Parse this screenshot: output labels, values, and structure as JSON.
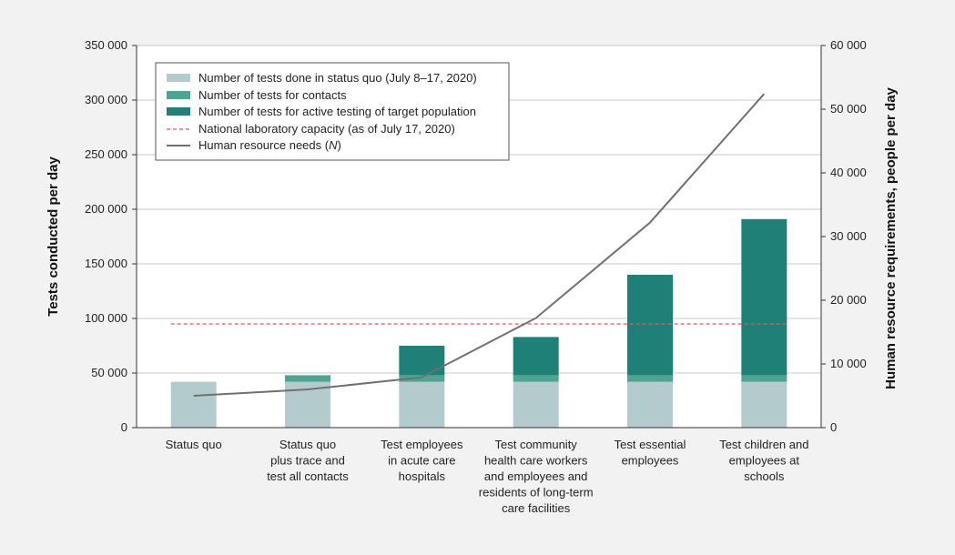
{
  "chart_data": {
    "type": "bar",
    "stacked": true,
    "ylabel": "Tests conducted per day",
    "y2label": "Human resource requirements, people per day",
    "ylim": [
      0,
      350000
    ],
    "y2lim": [
      0,
      60000
    ],
    "yticks": [
      "0",
      "50 000",
      "100 000",
      "150 000",
      "200 000",
      "250 000",
      "300 000",
      "350 000"
    ],
    "y2ticks": [
      "0",
      "10 000",
      "20 000",
      "30 000",
      "40 000",
      "50 000",
      "60 000"
    ],
    "categories": [
      [
        "Status quo"
      ],
      [
        "Status quo",
        "plus trace and",
        "test all contacts"
      ],
      [
        "Test employees",
        "in  acute care",
        "hospitals"
      ],
      [
        "Test community",
        "health care workers",
        "and employees and",
        "residents of long-term",
        "care facilities"
      ],
      [
        "Test essential",
        "employees"
      ],
      [
        "Test children and",
        "employees at",
        "schools"
      ]
    ],
    "series": [
      {
        "name": "Number of tests done in status quo (July 8–17, 2020)",
        "color": "#b3cbcc",
        "values": [
          42000,
          42000,
          42000,
          42000,
          42000,
          42000
        ]
      },
      {
        "name": "Number of tests for contacts",
        "color": "#4da58f",
        "values": [
          0,
          6000,
          6000,
          6000,
          6000,
          6000
        ]
      },
      {
        "name": "Number of tests for active testing of target population",
        "color": "#1f8078",
        "values": [
          0,
          0,
          27000,
          35000,
          92000,
          143000
        ]
      }
    ],
    "reference_line": {
      "name": "National laboratory capacity (as of July 17, 2020)",
      "value": 95000,
      "color": "#e05a5a"
    },
    "line_series": {
      "name_prefix": "Human resource needs (",
      "name_var": "N",
      "name_suffix": ")",
      "axis": "right",
      "color": "#707070",
      "values": [
        5000,
        6000,
        7900,
        17200,
        32200,
        52400
      ]
    },
    "legend_position": "top-left",
    "grid": true
  }
}
